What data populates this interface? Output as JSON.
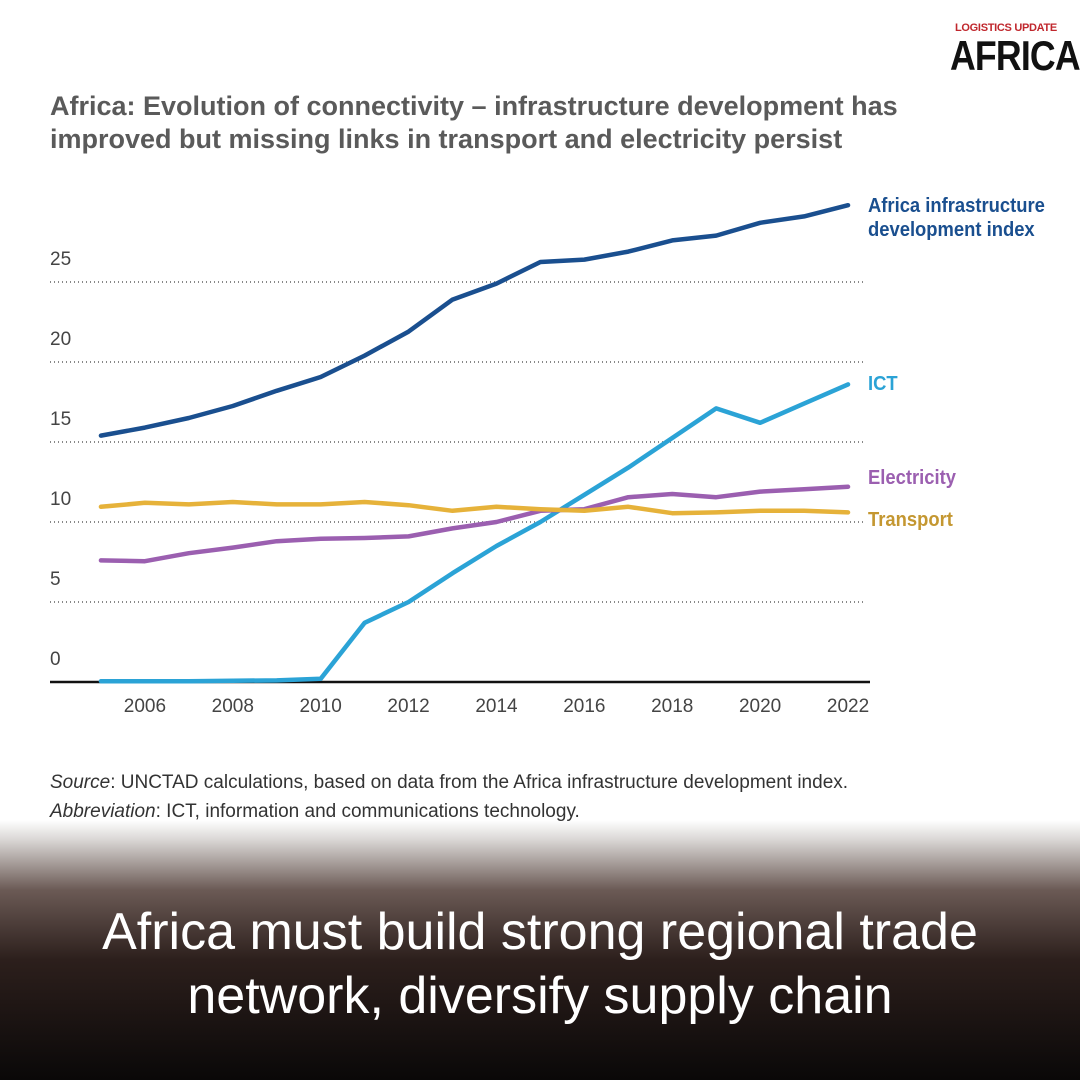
{
  "logo": {
    "top": "LOGISTICS UPDATE",
    "main": "AFRICA"
  },
  "chart_data": {
    "type": "line",
    "title": "Africa: Evolution of connectivity – infrastructure development has improved but missing links in transport and electricity persist",
    "x": [
      2005,
      2006,
      2007,
      2008,
      2009,
      2010,
      2011,
      2012,
      2013,
      2014,
      2015,
      2016,
      2017,
      2018,
      2019,
      2020,
      2021,
      2022
    ],
    "series": [
      {
        "name": "Africa infrastructure development index",
        "color": "#1a4f8f",
        "values": [
          15.4,
          15.9,
          16.5,
          17.25,
          18.2,
          19.06,
          20.4,
          21.9,
          23.9,
          24.9,
          26.25,
          26.4,
          26.9,
          27.6,
          27.9,
          28.7,
          29.1,
          29.8
        ]
      },
      {
        "name": "ICT",
        "color": "#2ba3d6",
        "values": [
          0.05,
          0.05,
          0.05,
          0.08,
          0.1,
          0.2,
          3.7,
          5.0,
          6.8,
          8.5,
          10.0,
          11.7,
          13.4,
          15.25,
          17.1,
          16.2,
          17.4,
          18.6
        ]
      },
      {
        "name": "Electricity",
        "color": "#9b5fb0",
        "values": [
          7.6,
          7.55,
          8.05,
          8.4,
          8.8,
          8.95,
          9.0,
          9.1,
          9.6,
          10.0,
          10.7,
          10.8,
          11.55,
          11.75,
          11.55,
          11.9,
          12.05,
          12.2
        ]
      },
      {
        "name": "Transport",
        "color": "#e6b23a",
        "values": [
          10.95,
          11.2,
          11.1,
          11.25,
          11.1,
          11.1,
          11.25,
          11.05,
          10.7,
          10.95,
          10.8,
          10.7,
          10.95,
          10.55,
          10.6,
          10.7,
          10.7,
          10.6
        ]
      }
    ],
    "xlim": [
      2004,
      2022.5
    ],
    "xticks": [
      2006,
      2008,
      2010,
      2012,
      2014,
      2016,
      2018,
      2020,
      2022
    ],
    "ylim": [
      0,
      31
    ],
    "yticks": [
      0,
      5,
      10,
      15,
      20,
      25
    ],
    "grid": true,
    "source": {
      "label": "Source",
      "text": ": UNCTAD calculations, based on data from the Africa infrastructure development index."
    },
    "abbreviation": {
      "label": "Abbreviation",
      "text": ": ICT, information and communications technology."
    }
  },
  "headline": "Africa must build strong regional trade network, diversify supply chain"
}
